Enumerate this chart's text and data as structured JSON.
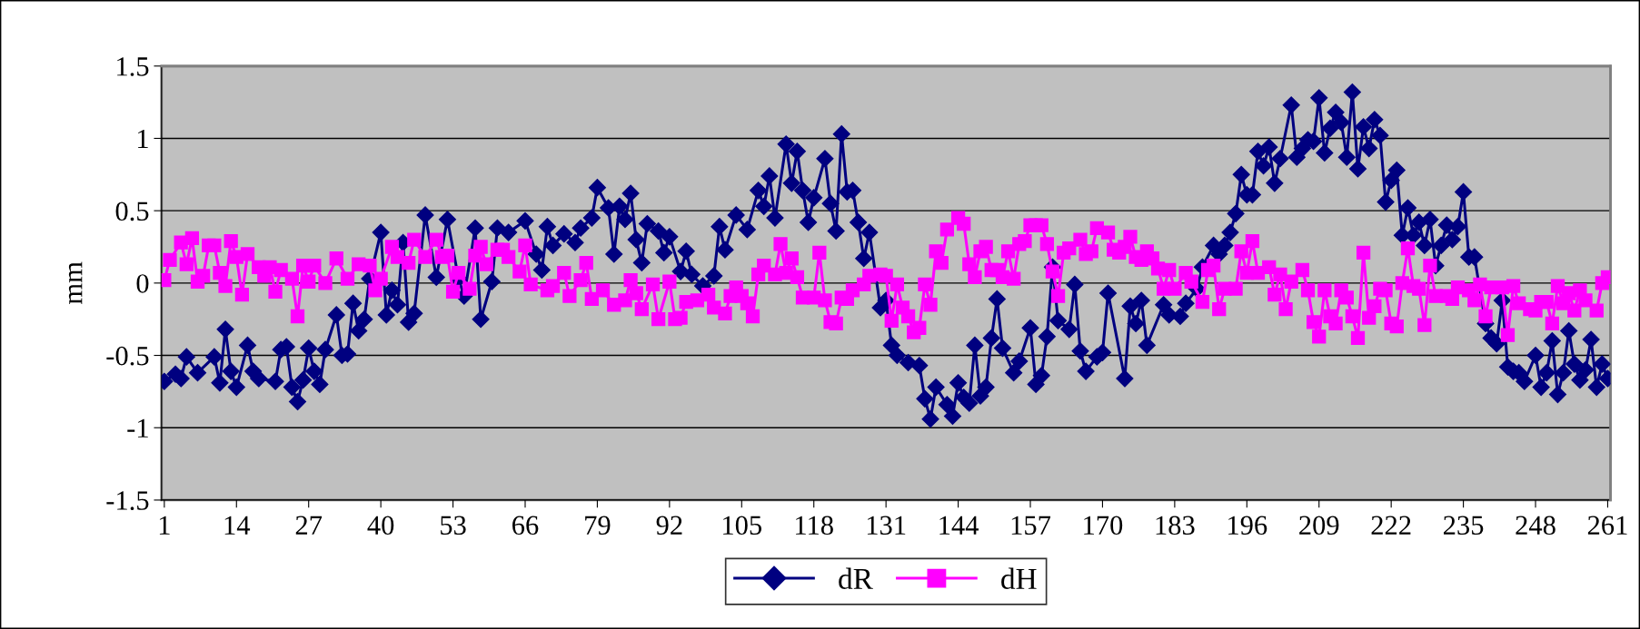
{
  "chart_data": {
    "type": "line",
    "ylabel": "mm",
    "xlim": [
      0.5,
      261.5
    ],
    "xticks": [
      1,
      14,
      27,
      40,
      53,
      66,
      79,
      92,
      105,
      118,
      131,
      144,
      157,
      170,
      183,
      196,
      209,
      222,
      235,
      248,
      261
    ],
    "ylim": [
      -1.5,
      1.5
    ],
    "yticks": [
      -1.5,
      -1,
      -0.5,
      0,
      0.5,
      1,
      1.5
    ],
    "grid": "y",
    "legend": "bottom",
    "series": [
      {
        "name": "dR",
        "color": "#000080",
        "marker": "diamond",
        "x": [
          1,
          3,
          4,
          5,
          7,
          10,
          11,
          12,
          13,
          14,
          16,
          17,
          18,
          21,
          22,
          23,
          24,
          25,
          26,
          27,
          28,
          29,
          30,
          32,
          33,
          34,
          35,
          36,
          37,
          38,
          40,
          41,
          42,
          43,
          44,
          45,
          46,
          48,
          50,
          52,
          54,
          55,
          57,
          58,
          60,
          61,
          63,
          66,
          68,
          69,
          70,
          71,
          73,
          75,
          76,
          78,
          79,
          81,
          82,
          83,
          84,
          85,
          86,
          87,
          88,
          90,
          91,
          92,
          94,
          95,
          96,
          98,
          100,
          101,
          102,
          104,
          106,
          108,
          109,
          110,
          111,
          113,
          114,
          115,
          116,
          117,
          118,
          120,
          121,
          122,
          123,
          124,
          125,
          126,
          127,
          128,
          130,
          131,
          132,
          133,
          135,
          137,
          138,
          139,
          140,
          142,
          143,
          144,
          145,
          146,
          147,
          148,
          149,
          150,
          151,
          152,
          154,
          155,
          157,
          158,
          159,
          160,
          161,
          162,
          164,
          165,
          166,
          167,
          169,
          170,
          171,
          174,
          175,
          176,
          177,
          178,
          181,
          182,
          184,
          185,
          187,
          188,
          190,
          191,
          192,
          193,
          194,
          195,
          196,
          197,
          198,
          199,
          200,
          201,
          202,
          204,
          205,
          206,
          207,
          208,
          209,
          210,
          211,
          212,
          213,
          214,
          215,
          216,
          217,
          218,
          219,
          220,
          221,
          222,
          223,
          224,
          225,
          226,
          227,
          228,
          229,
          230,
          231,
          232,
          233,
          234,
          235,
          236,
          237,
          239,
          240,
          241,
          242,
          243,
          244,
          245,
          246,
          248,
          249,
          250,
          251,
          252,
          253,
          254,
          255,
          256,
          257,
          258,
          259,
          260,
          261
        ],
        "values": [
          -0.68,
          -0.63,
          -0.66,
          -0.51,
          -0.62,
          -0.51,
          -0.69,
          -0.32,
          -0.61,
          -0.72,
          -0.43,
          -0.61,
          -0.66,
          -0.68,
          -0.46,
          -0.44,
          -0.72,
          -0.82,
          -0.67,
          -0.45,
          -0.61,
          -0.7,
          -0.46,
          -0.22,
          -0.5,
          -0.49,
          -0.14,
          -0.33,
          -0.25,
          0.03,
          0.35,
          -0.22,
          -0.05,
          -0.15,
          0.28,
          -0.27,
          -0.21,
          0.47,
          0.04,
          0.44,
          0.03,
          -0.09,
          0.38,
          -0.25,
          0.01,
          0.38,
          0.35,
          0.43,
          0.2,
          0.09,
          0.39,
          0.26,
          0.34,
          0.28,
          0.38,
          0.45,
          0.66,
          0.52,
          0.2,
          0.53,
          0.44,
          0.62,
          0.3,
          0.14,
          0.41,
          0.36,
          0.21,
          0.32,
          0.08,
          0.22,
          0.06,
          -0.02,
          0.05,
          0.39,
          0.23,
          0.47,
          0.37,
          0.64,
          0.53,
          0.74,
          0.45,
          0.96,
          0.69,
          0.91,
          0.64,
          0.42,
          0.59,
          0.86,
          0.55,
          0.36,
          1.03,
          0.63,
          0.64,
          0.42,
          0.17,
          0.35,
          -0.17,
          -0.12,
          -0.43,
          -0.5,
          -0.55,
          -0.57,
          -0.8,
          -0.94,
          -0.72,
          -0.84,
          -0.92,
          -0.69,
          -0.79,
          -0.83,
          -0.43,
          -0.78,
          -0.72,
          -0.38,
          -0.11,
          -0.45,
          -0.62,
          -0.54,
          -0.31,
          -0.7,
          -0.64,
          -0.37,
          0.11,
          -0.26,
          -0.32,
          -0.01,
          -0.47,
          -0.61,
          -0.51,
          -0.48,
          -0.07,
          -0.66,
          -0.16,
          -0.28,
          -0.12,
          -0.43,
          -0.15,
          -0.22,
          -0.23,
          -0.14,
          -0.04,
          0.11,
          0.26,
          0.2,
          0.26,
          0.35,
          0.48,
          0.75,
          0.61,
          0.61,
          0.91,
          0.81,
          0.94,
          0.69,
          0.86,
          1.23,
          0.87,
          0.93,
          0.99,
          0.98,
          1.28,
          0.9,
          1.07,
          1.18,
          1.11,
          0.87,
          1.32,
          0.79,
          1.08,
          0.93,
          1.13,
          1.02,
          0.56,
          0.71,
          0.78,
          0.33,
          0.52,
          0.33,
          0.42,
          0.26,
          0.44,
          0.12,
          0.26,
          0.4,
          0.3,
          0.39,
          0.63,
          0.18,
          0.18,
          -0.28,
          -0.38,
          -0.42,
          -0.12,
          -0.58,
          -0.61,
          -0.62,
          -0.68,
          -0.5,
          -0.72,
          -0.62,
          -0.4,
          -0.77,
          -0.62,
          -0.33,
          -0.56,
          -0.67,
          -0.6,
          -0.39,
          -0.72,
          -0.56,
          -0.66
        ]
      },
      {
        "name": "dH",
        "color": "#ff00ff",
        "marker": "square",
        "x": [
          1,
          2,
          4,
          5,
          6,
          7,
          8,
          9,
          10,
          11,
          12,
          13,
          14,
          15,
          16,
          18,
          19,
          20,
          21,
          22,
          24,
          25,
          26,
          27,
          28,
          30,
          32,
          34,
          36,
          38,
          39,
          40,
          42,
          43,
          45,
          46,
          48,
          50,
          51,
          52,
          53,
          54,
          56,
          57,
          58,
          59,
          61,
          62,
          63,
          65,
          66,
          67,
          70,
          71,
          73,
          74,
          76,
          77,
          78,
          80,
          82,
          84,
          85,
          86,
          87,
          89,
          90,
          92,
          93,
          94,
          95,
          97,
          99,
          100,
          102,
          103,
          104,
          105,
          106,
          107,
          108,
          109,
          111,
          112,
          113,
          114,
          115,
          116,
          118,
          119,
          120,
          121,
          122,
          123,
          124,
          125,
          127,
          128,
          130,
          131,
          132,
          133,
          134,
          135,
          136,
          137,
          138,
          139,
          140,
          141,
          142,
          144,
          145,
          146,
          147,
          148,
          149,
          150,
          151,
          152,
          153,
          154,
          155,
          156,
          157,
          158,
          159,
          160,
          161,
          162,
          163,
          164,
          166,
          167,
          168,
          169,
          171,
          172,
          173,
          174,
          175,
          176,
          177,
          178,
          179,
          180,
          181,
          182,
          183,
          185,
          186,
          188,
          189,
          190,
          191,
          192,
          194,
          195,
          196,
          197,
          198,
          200,
          201,
          202,
          203,
          204,
          206,
          207,
          208,
          209,
          210,
          211,
          212,
          213,
          214,
          215,
          216,
          217,
          218,
          219,
          220,
          221,
          222,
          223,
          224,
          225,
          226,
          227,
          228,
          229,
          230,
          232,
          233,
          234,
          236,
          237,
          238,
          239,
          240,
          242,
          243,
          244,
          245,
          247,
          248,
          249,
          250,
          251,
          252,
          253,
          254,
          255,
          256,
          257,
          259,
          260,
          261
        ],
        "values": [
          0.02,
          0.16,
          0.28,
          0.13,
          0.31,
          0.01,
          0.05,
          0.26,
          0.26,
          0.07,
          -0.02,
          0.29,
          0.18,
          -0.08,
          0.2,
          0.11,
          0.05,
          0.11,
          -0.06,
          0.09,
          0.03,
          -0.23,
          0.12,
          0.01,
          0.12,
          0.0,
          0.17,
          0.03,
          0.13,
          0.12,
          -0.05,
          0.03,
          0.25,
          0.18,
          0.14,
          0.3,
          0.18,
          0.3,
          0.18,
          0.19,
          -0.06,
          0.07,
          -0.04,
          0.19,
          0.25,
          0.13,
          0.23,
          0.23,
          0.18,
          0.08,
          0.26,
          -0.01,
          -0.05,
          -0.02,
          0.07,
          -0.09,
          0.02,
          0.14,
          -0.11,
          -0.05,
          -0.15,
          -0.12,
          0.02,
          -0.07,
          -0.18,
          -0.01,
          -0.25,
          0.01,
          -0.25,
          -0.24,
          -0.13,
          -0.12,
          -0.08,
          -0.17,
          -0.21,
          -0.09,
          -0.03,
          -0.09,
          -0.14,
          -0.23,
          0.06,
          0.12,
          0.06,
          0.27,
          0.07,
          0.17,
          0.04,
          -0.1,
          -0.1,
          0.21,
          -0.12,
          -0.27,
          -0.28,
          -0.1,
          -0.11,
          -0.05,
          -0.01,
          0.05,
          0.06,
          0.05,
          -0.26,
          -0.01,
          -0.17,
          -0.23,
          -0.34,
          -0.31,
          -0.01,
          -0.15,
          0.22,
          0.14,
          0.37,
          0.45,
          0.41,
          0.13,
          0.04,
          0.22,
          0.25,
          0.09,
          0.09,
          0.04,
          0.22,
          0.03,
          0.27,
          0.29,
          0.4,
          0.4,
          0.4,
          0.27,
          0.08,
          -0.09,
          0.21,
          0.24,
          0.3,
          0.2,
          0.22,
          0.38,
          0.35,
          0.23,
          0.21,
          0.25,
          0.32,
          0.18,
          0.16,
          0.22,
          0.17,
          0.1,
          -0.04,
          0.09,
          -0.04,
          0.07,
          0.01,
          -0.13,
          0.09,
          0.12,
          -0.18,
          -0.04,
          -0.04,
          0.22,
          0.07,
          0.29,
          0.07,
          0.11,
          -0.08,
          0.06,
          -0.18,
          0.01,
          0.09,
          -0.05,
          -0.27,
          -0.37,
          -0.05,
          -0.23,
          -0.28,
          -0.05,
          -0.1,
          -0.23,
          -0.38,
          0.21,
          -0.24,
          -0.16,
          -0.04,
          -0.05,
          -0.28,
          -0.3,
          0.0,
          0.24,
          -0.02,
          -0.04,
          -0.29,
          0.12,
          -0.09,
          -0.09,
          -0.11,
          -0.03,
          -0.05,
          -0.12,
          -0.01,
          -0.23,
          -0.03,
          -0.03,
          -0.36,
          -0.02,
          -0.14,
          -0.18,
          -0.19,
          -0.13,
          -0.13,
          -0.28,
          -0.02,
          -0.14,
          -0.07,
          -0.19,
          -0.05,
          -0.12,
          -0.19,
          0.0,
          0.04
        ]
      }
    ]
  }
}
